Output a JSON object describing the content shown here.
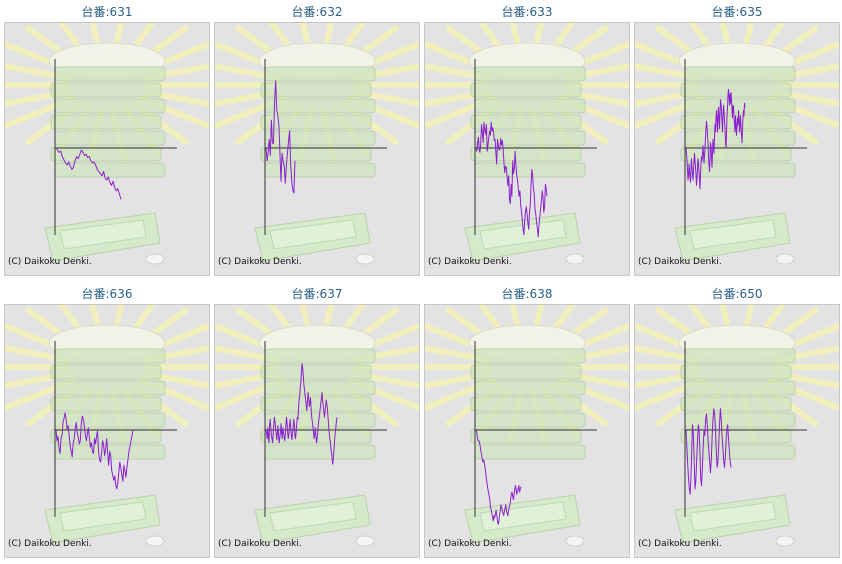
{
  "credit": "(C) Daikoku Denki.",
  "colors": {
    "line": "#8a1fd1",
    "axis": "#333333",
    "title": "#2a5f8a",
    "bg": "#e3e3e3"
  },
  "chart_data": [
    {
      "type": "line",
      "title": "台番:631",
      "y": [
        0,
        -2,
        -4,
        -3,
        -8,
        -11,
        -14,
        -16,
        -13,
        -17,
        -20,
        -18,
        -12,
        -8,
        -10,
        -6,
        -2,
        -4,
        -7,
        -6,
        -9,
        -8,
        -12,
        -14,
        -13,
        -16,
        -20,
        -22,
        -24,
        -26,
        -22,
        -28,
        -30,
        -27,
        -32,
        -35,
        -31,
        -37,
        -40,
        -38,
        -43,
        -48
      ]
    },
    {
      "type": "line",
      "title": "台番:632",
      "y": [
        0,
        -12,
        -4,
        8,
        -7,
        26,
        5,
        4,
        44,
        63,
        36,
        31,
        21,
        -6,
        -31,
        -5,
        -13,
        -17,
        -33,
        -16,
        -4,
        7,
        16,
        -16,
        -32,
        -40,
        -42,
        -12
      ]
    },
    {
      "type": "line",
      "title": "台番:633",
      "y": [
        0,
        -3,
        5,
        10,
        -2,
        -4,
        6,
        22,
        14,
        5,
        24,
        17,
        13,
        22,
        -3,
        3,
        10,
        16,
        12,
        24,
        16,
        19,
        14,
        7,
        8,
        -5,
        -15,
        8,
        2,
        -2,
        -1,
        9,
        3,
        7,
        -1,
        -13,
        -23,
        -17,
        -18,
        -27,
        -35,
        -26,
        -48,
        -52,
        -34,
        -45,
        -12,
        -24,
        -19,
        -3,
        -16,
        -25,
        -30,
        -38,
        -45,
        -40,
        -53,
        -60,
        -67,
        -76,
        -81,
        -68,
        -59,
        -55,
        -62,
        -70,
        -76,
        -62,
        -54,
        -36,
        -20,
        -25,
        -37,
        -43,
        -57,
        -62,
        -70,
        -75,
        -83,
        -72,
        -64,
        -57,
        -49,
        -40,
        -45,
        -60,
        -55,
        -34,
        -38,
        -45
      ]
    },
    {
      "type": "line",
      "title": "台番:635",
      "y": [
        0,
        -5,
        -12,
        -20,
        -30,
        -25,
        -15,
        -22,
        -28,
        -32,
        -20,
        -10,
        -18,
        -25,
        -30,
        -22,
        -12,
        -5,
        -12,
        -18,
        -25,
        -35,
        -28,
        -18,
        -10,
        -15,
        -22,
        -30,
        -38,
        -25,
        -15,
        -8,
        -12,
        -5,
        2,
        -6,
        -14,
        -8,
        0,
        10,
        18,
        25,
        20,
        12,
        5,
        -8,
        -15,
        -22,
        -10,
        5,
        2,
        -8,
        -18,
        -5,
        8,
        2,
        -5,
        10,
        22,
        15,
        28,
        35,
        25,
        15,
        30,
        38,
        28,
        18,
        32,
        45,
        42,
        35,
        25,
        15,
        30,
        40,
        35,
        25,
        18,
        5,
        0,
        12,
        30,
        38,
        50,
        55,
        48,
        40,
        50,
        42,
        52,
        45,
        35,
        28,
        40,
        38,
        30,
        22,
        15,
        30,
        22,
        12,
        20,
        28,
        22,
        35,
        28,
        15,
        22,
        30,
        20,
        12,
        5,
        18,
        28,
        35,
        30,
        42,
        38
      ]
    },
    {
      "type": "line",
      "title": "台番:636",
      "y": [
        0,
        -10,
        -6,
        -17,
        -22,
        -7,
        -5,
        8,
        11,
        16,
        10,
        1,
        4,
        -6,
        -15,
        -20,
        -25,
        -12,
        -8,
        2,
        7,
        -3,
        -7,
        -13,
        -10,
        6,
        13,
        10,
        3,
        -5,
        -10,
        -3,
        2,
        -8,
        -16,
        -12,
        -20,
        -22,
        -8,
        -13,
        -6,
        -1,
        -20,
        -28,
        -30,
        -21,
        -10,
        -14,
        -24,
        -18,
        -8,
        -21,
        -33,
        -20,
        -24,
        -38,
        -42,
        -47,
        -43,
        -52,
        -55,
        -49,
        -40,
        -30,
        -35,
        -42,
        -48,
        -33,
        -38,
        -44,
        -35,
        -28,
        -20,
        -15,
        -10,
        -5,
        0
      ]
    },
    {
      "type": "line",
      "title": "台番:637",
      "y": [
        0,
        -3,
        -8,
        2,
        -6,
        -12,
        5,
        10,
        2,
        -5,
        -8,
        -12,
        -3,
        5,
        12,
        8,
        2,
        -4,
        -9,
        -2,
        4,
        -6,
        -12,
        -7,
        -2,
        6,
        -3,
        -8,
        2,
        -2,
        -6,
        -10,
        -4,
        5,
        12,
        6,
        -3,
        -8,
        -3,
        4,
        10,
        3,
        -5,
        -9,
        -3,
        2,
        10,
        6,
        -5,
        -8,
        -2,
        5,
        12,
        10,
        20,
        28,
        32,
        40,
        45,
        55,
        62,
        58,
        50,
        42,
        38,
        32,
        28,
        22,
        18,
        28,
        35,
        30,
        22,
        25,
        30,
        20,
        12,
        8,
        3,
        -2,
        -8,
        -4,
        2,
        -6,
        -12,
        -8,
        -3,
        5,
        10,
        15,
        20,
        25,
        30,
        35,
        28,
        22,
        18,
        12,
        16,
        22,
        28,
        24,
        20,
        12,
        5,
        -3,
        -8,
        -12,
        -18,
        -22,
        -28,
        -32,
        -26,
        -18,
        -10,
        -3,
        2,
        8,
        12
      ]
    },
    {
      "type": "line",
      "title": "台番:638",
      "y": [
        0,
        -2,
        -7,
        -10,
        -10,
        -12,
        -15,
        -20,
        -22,
        -27,
        -30,
        -28,
        -30,
        -35,
        -40,
        -46,
        -50,
        -55,
        -58,
        -62,
        -65,
        -72,
        -75,
        -78,
        -82,
        -85,
        -80,
        -82,
        -78,
        -75,
        -80,
        -85,
        -88,
        -86,
        -80,
        -76,
        -70,
        -72,
        -75,
        -78,
        -80,
        -76,
        -73,
        -70,
        -75,
        -78,
        -80,
        -76,
        -72,
        -70,
        -65,
        -60,
        -58,
        -62,
        -65,
        -60,
        -55,
        -52,
        -56,
        -60,
        -57,
        -55,
        -52,
        -58,
        -55,
        -53
      ]
    },
    {
      "type": "line",
      "title": "台番:650",
      "y": [
        0,
        -15,
        -30,
        -45,
        -55,
        -60,
        -45,
        -20,
        5,
        -5,
        -30,
        -55,
        -48,
        -30,
        -10,
        5,
        0,
        -20,
        -45,
        -52,
        -35,
        -15,
        0,
        -5,
        10,
        15,
        5,
        -10,
        -20,
        -30,
        -40,
        -25,
        -5,
        10,
        20,
        15,
        0,
        -20,
        -35,
        -30,
        -15,
        5,
        20,
        10,
        -5,
        -15,
        -28,
        -35,
        -25,
        -10,
        0,
        5,
        -8,
        -20,
        -30,
        -35
      ]
    }
  ]
}
